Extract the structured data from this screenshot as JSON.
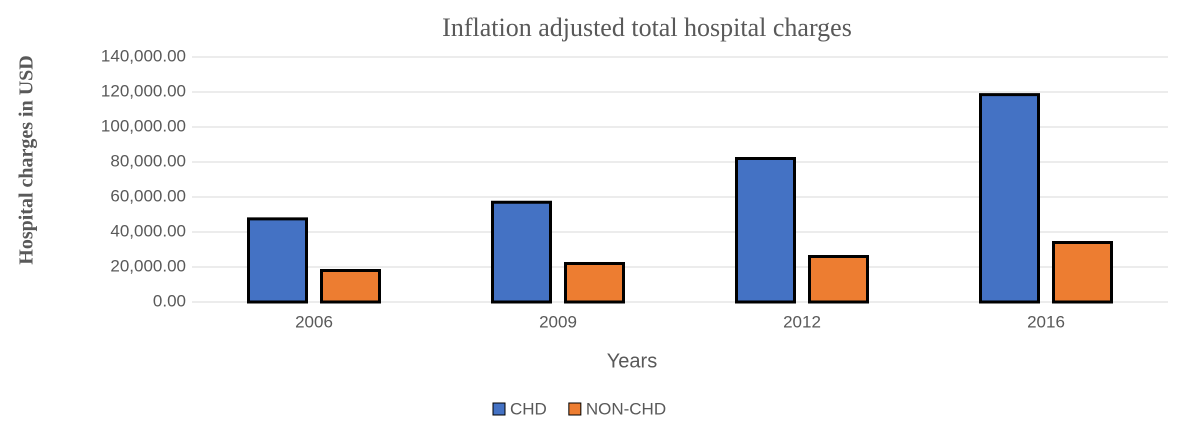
{
  "chart_data": {
    "type": "bar",
    "title": "Inflation adjusted total hospital charges",
    "x_label": "Years",
    "y_label": "Hospital charges in USD",
    "categories": [
      "2006",
      "2009",
      "2012",
      "2016"
    ],
    "series": [
      {
        "name": "CHD",
        "color": "#4472c4",
        "values": [
          47500,
          57000,
          82000,
          118500
        ]
      },
      {
        "name": "NON-CHD",
        "color": "#ed7d31",
        "values": [
          18000,
          22000,
          26000,
          34000
        ]
      }
    ],
    "ylim": [
      0,
      140000
    ],
    "yticks": [
      {
        "value": 0,
        "label": "0.00"
      },
      {
        "value": 20000,
        "label": "20,000.00"
      },
      {
        "value": 40000,
        "label": "40,000.00"
      },
      {
        "value": 60000,
        "label": "60,000.00"
      },
      {
        "value": 80000,
        "label": "80,000.00"
      },
      {
        "value": 100000,
        "label": "100,000.00"
      },
      {
        "value": 120000,
        "label": "120,000.00"
      },
      {
        "value": 140000,
        "label": "140,000.00"
      }
    ],
    "grid": true,
    "legend": "bottom"
  }
}
